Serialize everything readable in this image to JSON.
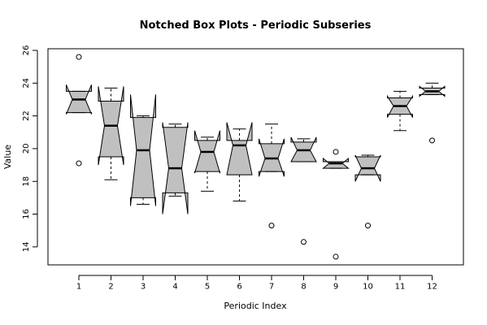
{
  "chart_data": {
    "type": "notched-boxplot",
    "title": "Notched Box Plots - Periodic Subseries",
    "xlabel": "Periodic Index",
    "ylabel": "Value",
    "categories": [
      "1",
      "2",
      "3",
      "4",
      "5",
      "6",
      "7",
      "8",
      "9",
      "10",
      "11",
      "12"
    ],
    "ylim": [
      12.9,
      26.1
    ],
    "yticks": [
      14,
      16,
      18,
      20,
      22,
      24,
      26
    ],
    "grid": false,
    "box_fill": "#c0c0c0",
    "boxes": [
      {
        "label": "1",
        "whisker_low": 22.2,
        "q1": 22.2,
        "median": 23.0,
        "q3": 23.5,
        "whisker_high": 23.5,
        "notch_low": 22.1,
        "notch_high": 23.9,
        "outliers": [
          25.6,
          19.1
        ]
      },
      {
        "label": "2",
        "whisker_low": 18.1,
        "q1": 19.5,
        "median": 21.4,
        "q3": 22.9,
        "whisker_high": 23.7,
        "notch_low": 19.0,
        "notch_high": 23.8,
        "outliers": []
      },
      {
        "label": "3",
        "whisker_low": 16.6,
        "q1": 17.0,
        "median": 19.9,
        "q3": 21.9,
        "whisker_high": 22.0,
        "notch_low": 16.5,
        "notch_high": 23.3,
        "outliers": []
      },
      {
        "label": "4",
        "whisker_low": 17.1,
        "q1": 17.3,
        "median": 18.8,
        "q3": 21.3,
        "whisker_high": 21.5,
        "notch_low": 16.0,
        "notch_high": 21.6,
        "outliers": []
      },
      {
        "label": "5",
        "whisker_low": 17.4,
        "q1": 18.6,
        "median": 19.8,
        "q3": 20.5,
        "whisker_high": 20.7,
        "notch_low": 18.5,
        "notch_high": 21.1,
        "outliers": []
      },
      {
        "label": "6",
        "whisker_low": 16.8,
        "q1": 18.4,
        "median": 20.2,
        "q3": 20.5,
        "whisker_high": 21.2,
        "notch_low": 18.4,
        "notch_high": 21.6,
        "outliers": []
      },
      {
        "label": "7",
        "whisker_low": 18.6,
        "q1": 18.6,
        "median": 19.4,
        "q3": 20.3,
        "whisker_high": 21.5,
        "notch_low": 18.3,
        "notch_high": 20.6,
        "outliers": [
          15.3
        ]
      },
      {
        "label": "8",
        "whisker_low": 19.2,
        "q1": 19.2,
        "median": 19.9,
        "q3": 20.4,
        "whisker_high": 20.6,
        "notch_low": 19.2,
        "notch_high": 20.7,
        "outliers": [
          14.3
        ]
      },
      {
        "label": "9",
        "whisker_low": 18.8,
        "q1": 18.8,
        "median": 19.1,
        "q3": 19.2,
        "whisker_high": 19.2,
        "notch_low": 18.8,
        "notch_high": 19.4,
        "outliers": [
          19.8,
          13.4
        ]
      },
      {
        "label": "10",
        "whisker_low": 18.4,
        "q1": 18.4,
        "median": 18.8,
        "q3": 19.5,
        "whisker_high": 19.6,
        "notch_low": 18.0,
        "notch_high": 19.6,
        "outliers": [
          15.3
        ]
      },
      {
        "label": "11",
        "whisker_low": 21.1,
        "q1": 22.1,
        "median": 22.6,
        "q3": 23.1,
        "whisker_high": 23.5,
        "notch_low": 21.9,
        "notch_high": 23.2,
        "outliers": []
      },
      {
        "label": "12",
        "whisker_low": 23.3,
        "q1": 23.3,
        "median": 23.5,
        "q3": 23.7,
        "whisker_high": 24.0,
        "notch_low": 23.2,
        "notch_high": 23.8,
        "outliers": [
          20.5
        ]
      }
    ]
  }
}
